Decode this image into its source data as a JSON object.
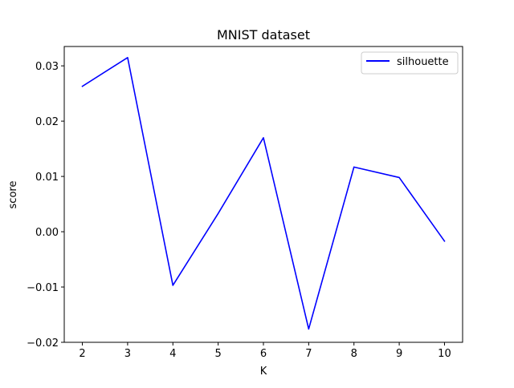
{
  "chart_data": {
    "type": "line",
    "title": "MNIST dataset",
    "xlabel": "K",
    "ylabel": "score",
    "x": [
      2,
      3,
      4,
      5,
      6,
      7,
      8,
      9,
      10
    ],
    "xlim": [
      1.6,
      10.4
    ],
    "ylim": [
      -0.02,
      0.0335
    ],
    "xticks": [
      2,
      3,
      4,
      5,
      6,
      7,
      8,
      9,
      10
    ],
    "yticks": [
      -0.02,
      -0.01,
      0.0,
      0.01,
      0.02,
      0.03
    ],
    "ytick_labels": [
      "−0.02",
      "−0.01",
      "0.00",
      "0.01",
      "0.02",
      "0.03"
    ],
    "grid": false,
    "legend_position": "top-right",
    "series": [
      {
        "name": "silhouette",
        "color": "#0000ff",
        "values": [
          0.0263,
          0.0315,
          -0.0097,
          0.0033,
          0.017,
          -0.0176,
          0.0117,
          0.0098,
          -0.0017
        ]
      }
    ]
  }
}
